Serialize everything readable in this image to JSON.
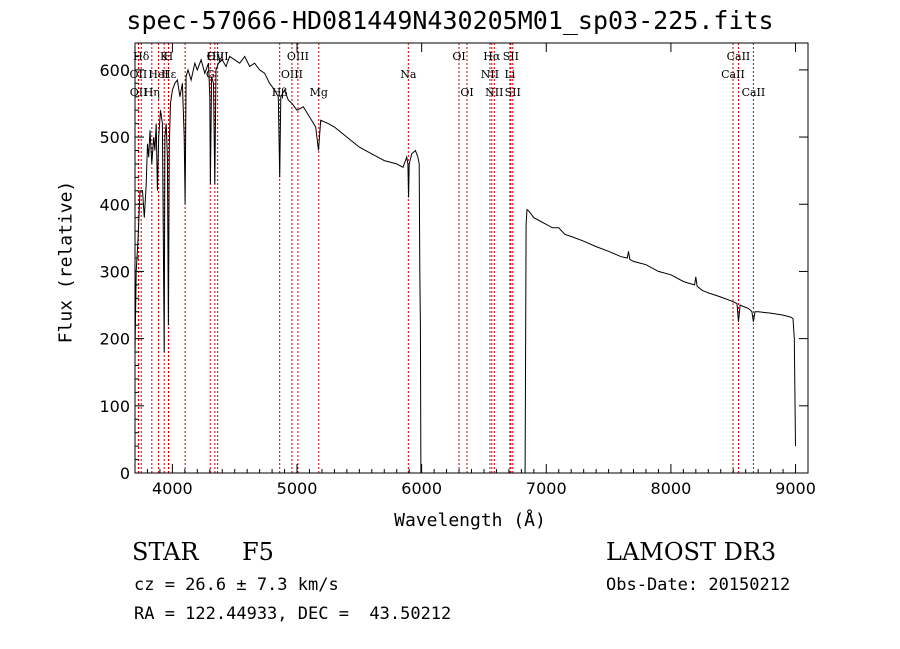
{
  "chart_data": {
    "type": "line",
    "title": "spec-57066-HD081449N430205M01_sp03-225.fits",
    "xlabel": "Wavelength (Å)",
    "ylabel": "Flux (relative)",
    "xlim": [
      3700,
      9100
    ],
    "ylim": [
      0,
      640
    ],
    "xticks": [
      4000,
      5000,
      6000,
      7000,
      8000,
      9000
    ],
    "yticks": [
      0,
      100,
      200,
      300,
      400,
      500,
      600
    ],
    "series": [
      {
        "name": "Flux",
        "segments": [
          {
            "x": [
              3700,
              3710,
              3725,
              3740,
              3760,
              3775,
              3790,
              3800,
              3810,
              3820,
              3835,
              3850,
              3860,
              3870,
              3880,
              3890,
              3905,
              3920,
              3934,
              3940,
              3950,
              3960,
              3968,
              3975,
              3985,
              4000,
              4020,
              4040,
              4060,
              4080,
              4095,
              4102,
              4110,
              4125,
              4150,
              4180,
              4200,
              4230,
              4260,
              4290,
              4300,
              4305,
              4315,
              4330,
              4340,
              4350,
              4370,
              4400,
              4430,
              4460,
              4500,
              4540,
              4580,
              4620,
              4660,
              4700,
              4740,
              4780,
              4820,
              4850,
              4861,
              4870,
              4900,
              4930,
              4960,
              5000,
              5050,
              5100,
              5150,
              5172,
              5190,
              5250,
              5300,
              5400,
              5500,
              5600,
              5700,
              5800,
              5850,
              5880,
              5890,
              5895,
              5900,
              5920,
              5950,
              5970,
              5980,
              5985,
              5990,
              5994
            ],
            "y": [
              180,
              300,
              350,
              420,
              420,
              380,
              430,
              490,
              470,
              510,
              460,
              500,
              480,
              520,
              420,
              500,
              540,
              520,
              180,
              500,
              520,
              470,
              220,
              490,
              550,
              570,
              580,
              585,
              560,
              580,
              500,
              400,
              590,
              600,
              585,
              610,
              600,
              615,
              595,
              610,
              560,
              430,
              590,
              580,
              430,
              600,
              610,
              615,
              605,
              620,
              615,
              610,
              620,
              605,
              610,
              600,
              595,
              580,
              570,
              560,
              440,
              560,
              570,
              555,
              550,
              540,
              545,
              530,
              515,
              480,
              525,
              520,
              515,
              500,
              485,
              475,
              465,
              460,
              455,
              470,
              460,
              410,
              460,
              475,
              480,
              470,
              460,
              300,
              220,
              0
            ]
          },
          {
            "x": [
              6830,
              6838,
              6845,
              6860,
              6900,
              6950,
              7000,
              7050,
              7100,
              7150,
              7200,
              7300,
              7400,
              7500,
              7600,
              7650,
              7660,
              7670,
              7700,
              7800,
              7900,
              8000,
              8100,
              8150,
              8190,
              8200,
              8210,
              8250,
              8300,
              8400,
              8500,
              8530,
              8542,
              8555,
              8580,
              8620,
              8640,
              8650,
              8662,
              8675,
              8700,
              8800,
              8900,
              8960,
              8980,
              8990,
              8995,
              9000
            ],
            "y": [
              0,
              370,
              392,
              390,
              380,
              375,
              370,
              365,
              365,
              355,
              352,
              345,
              337,
              330,
              322,
              320,
              330,
              318,
              315,
              310,
              300,
              295,
              285,
              282,
              280,
              292,
              278,
              272,
              268,
              262,
              255,
              252,
              225,
              250,
              248,
              245,
              242,
              240,
              225,
              240,
              240,
              238,
              235,
              232,
              230,
              200,
              120,
              40
            ]
          }
        ]
      }
    ],
    "lines": [
      {
        "name": "H-delta",
        "x": 3750,
        "label": "Hδ",
        "row": 0
      },
      {
        "name": "CaII-K",
        "x": 3934,
        "label": "K",
        "row": 0
      },
      {
        "name": "CaII-H",
        "x": 3968,
        "label": "H",
        "row": 0
      },
      {
        "name": "OII-3727",
        "x": 3727,
        "label": "OII",
        "row": 1
      },
      {
        "name": "OII-b",
        "x": 3729,
        "label": "OII",
        "row": 2
      },
      {
        "name": "H-eta",
        "x": 3835,
        "label": "Hη",
        "row": 2
      },
      {
        "name": "HeI",
        "x": 3889,
        "label": "HeI",
        "row": 1
      },
      {
        "name": "H-epsilon",
        "x": 3970,
        "label": "Hε",
        "row": 1
      },
      {
        "name": "H-gamma-blue",
        "x": 4102,
        "label": "",
        "row": 0
      },
      {
        "name": "H-gamma",
        "x": 4341,
        "label": "Hγ",
        "row": 0
      },
      {
        "name": "OIII-4363",
        "x": 4363,
        "label": "OIII",
        "row": 0
      },
      {
        "name": "G-band",
        "x": 4304,
        "label": "G",
        "row": 1
      },
      {
        "name": "H-beta",
        "x": 4861,
        "label": "Hβ",
        "row": 2
      },
      {
        "name": "OIII-4959",
        "x": 4959,
        "label": "OIII",
        "row": 1
      },
      {
        "name": "OIII-5007",
        "x": 5007,
        "label": "OIII",
        "row": 0
      },
      {
        "name": "MgI",
        "x": 5175,
        "label": "Mg",
        "row": 2
      },
      {
        "name": "NaI",
        "x": 5893,
        "label": "Na",
        "row": 1
      },
      {
        "name": "OI-6300",
        "x": 6300,
        "label": "OI",
        "row": 0
      },
      {
        "name": "OI-6364",
        "x": 6364,
        "label": "OI",
        "row": 2
      },
      {
        "name": "H-alpha",
        "x": 6563,
        "label": "Hα",
        "row": 0
      },
      {
        "name": "NII-6548",
        "x": 6548,
        "label": "NII",
        "row": 1
      },
      {
        "name": "NII-6583",
        "x": 6583,
        "label": "NII",
        "row": 2
      },
      {
        "name": "SII-6716",
        "x": 6716,
        "label": "SII",
        "row": 0
      },
      {
        "name": "LiI",
        "x": 6708,
        "label": "Li",
        "row": 1
      },
      {
        "name": "SII-6731",
        "x": 6731,
        "label": "SII",
        "row": 2
      },
      {
        "name": "CaII-8498",
        "x": 8498,
        "label": "CaII",
        "row": 1
      },
      {
        "name": "CaII-8542",
        "x": 8542,
        "label": "CaII",
        "row": 0
      },
      {
        "name": "CaII-8662",
        "x": 8662,
        "label": "CaII",
        "row": 2
      }
    ],
    "line_color": "#cc0000"
  },
  "info": {
    "object_type": "STAR",
    "subclass": "F5",
    "survey": "LAMOST DR3",
    "cz": "cz = 26.6 ± 7.3 km/s",
    "obs_date": "Obs-Date: 20150212",
    "radec": "RA = 122.44933, DEC =  43.50212"
  }
}
